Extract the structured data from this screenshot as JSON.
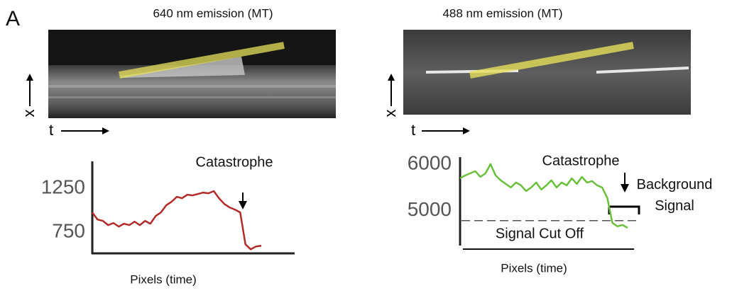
{
  "panel_label": "A",
  "kymographs": [
    {
      "title": "640 nm emission (MT)",
      "t_label": "t",
      "x_label": "x"
    },
    {
      "title": "488 nm emission (MT)",
      "t_label": "t",
      "x_label": "x"
    }
  ],
  "chart_data": [
    {
      "type": "line",
      "x_label": "Pixels (time)",
      "annotations": [
        "Catastrophe"
      ],
      "ylim": [
        510,
        1540
      ],
      "yticks": [
        750,
        1250
      ],
      "series": [
        {
          "color": "#b22a2a",
          "values": [
            976,
            895,
            879,
            831,
            855,
            815,
            847,
            831,
            871,
            831,
            879,
            847,
            935,
            976,
            1056,
            1097,
            1153,
            1137,
            1177,
            1169,
            1185,
            1201,
            1193,
            1218,
            1137,
            1072,
            1032,
            1008,
            976,
            613,
            556,
            589,
            597
          ]
        }
      ]
    },
    {
      "type": "line",
      "x_label": "Pixels (time)",
      "annotations": [
        "Catastrophe",
        "Background Signal",
        "Signal Cut Off"
      ],
      "ylim": [
        4270,
        6150
      ],
      "yticks": [
        5000,
        6000
      ],
      "threshold": 4790,
      "series": [
        {
          "color": "#6abf3a",
          "values": [
            5697,
            5758,
            5803,
            5848,
            5727,
            5803,
            6000,
            5758,
            5652,
            5576,
            5500,
            5606,
            5545,
            5424,
            5500,
            5606,
            5455,
            5545,
            5652,
            5500,
            5606,
            5545,
            5697,
            5576,
            5727,
            5606,
            5636,
            5545,
            5500,
            5273,
            4742,
            4667,
            4697,
            4636
          ]
        }
      ]
    }
  ]
}
